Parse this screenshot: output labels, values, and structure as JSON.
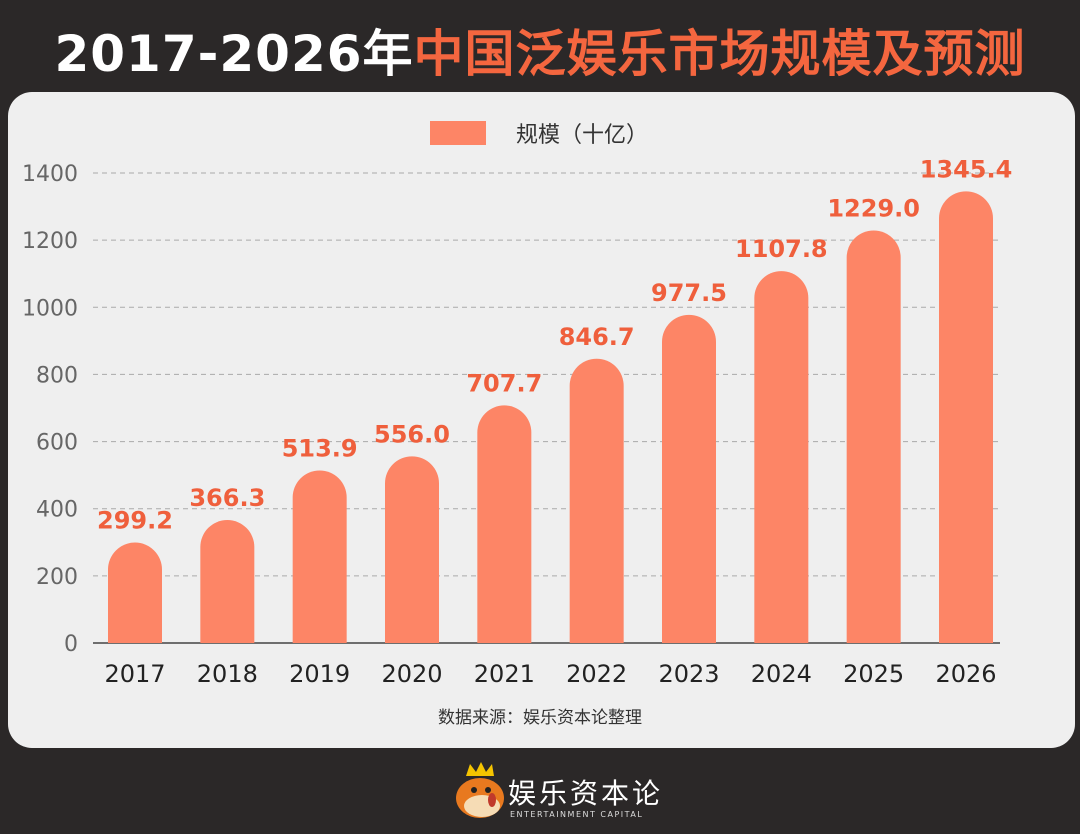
{
  "title": {
    "part1": "2017-2026年",
    "part2": "中国泛娱乐市场规模及预测"
  },
  "colors": {
    "background": "#2b2828",
    "card": "#efefef",
    "bar": "#fd8566",
    "value_label": "#ef5f3c",
    "title_accent": "#f4663f"
  },
  "chart_data": {
    "type": "bar",
    "title": "2017-2026年中国泛娱乐市场规模及预测",
    "categories": [
      "2017",
      "2018",
      "2019",
      "2020",
      "2021",
      "2022",
      "2023",
      "2024",
      "2025",
      "2026"
    ],
    "series": [
      {
        "name": "规模（十亿）",
        "values": [
          299.2,
          366.3,
          513.9,
          556.0,
          707.7,
          846.7,
          977.5,
          1107.8,
          1229.0,
          1345.4
        ]
      }
    ],
    "value_labels": [
      "299.2",
      "366.3",
      "513.9",
      "556.0",
      "707.7",
      "846.7",
      "977.5",
      "1107.8",
      "1229.0",
      "1345.4"
    ],
    "ylim": [
      0,
      1400
    ],
    "yticks": [
      "0",
      "200",
      "400",
      "600",
      "800",
      "1000",
      "1200",
      "1400"
    ],
    "grid": true,
    "legend": "top-center",
    "xlabel": "",
    "ylabel": ""
  },
  "source": "数据来源：娱乐资本论整理",
  "footer": {
    "brand": "娱乐资本论",
    "brand_en": "ENTERTAINMENT CAPITAL",
    "logo_icon": "crowned-pufferfish-mascot"
  }
}
